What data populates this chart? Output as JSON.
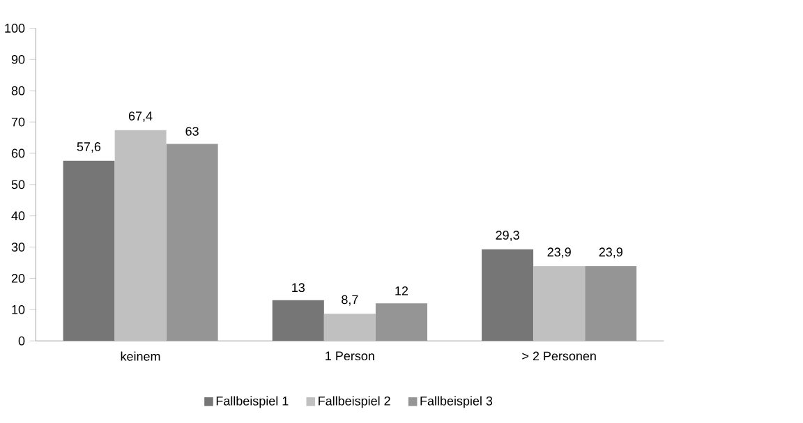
{
  "chart_data": {
    "type": "bar",
    "categories": [
      "keinem",
      "1 Person",
      "> 2 Personen"
    ],
    "series": [
      {
        "name": "Fallbeispiel 1",
        "color": "#767676",
        "values": [
          57.6,
          13,
          29.3
        ],
        "value_labels": [
          "57,6",
          "13",
          "29,3"
        ]
      },
      {
        "name": "Fallbeispiel 2",
        "color": "#c0c0c0",
        "values": [
          67.4,
          8.7,
          23.9
        ],
        "value_labels": [
          "67,4",
          "8,7",
          "23,9"
        ]
      },
      {
        "name": "Fallbeispiel 3",
        "color": "#959595",
        "values": [
          63,
          12,
          23.9
        ],
        "value_labels": [
          "63",
          "12",
          "23,9"
        ]
      }
    ],
    "ylim": [
      0,
      100
    ],
    "yticks": [
      0,
      10,
      20,
      30,
      40,
      50,
      60,
      70,
      80,
      90,
      100
    ],
    "grid": false,
    "legend": "bottom"
  }
}
